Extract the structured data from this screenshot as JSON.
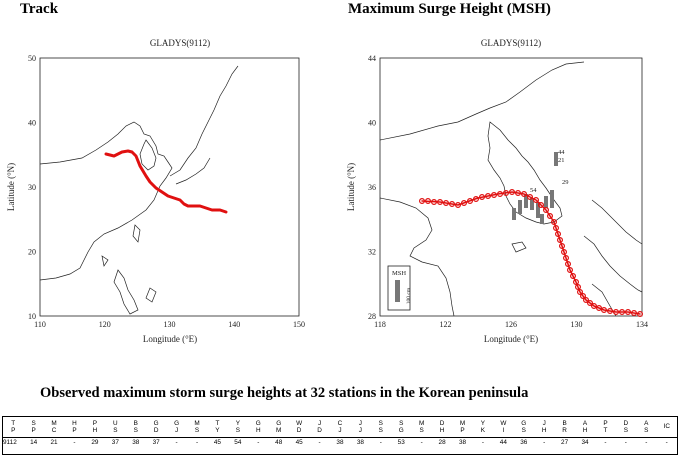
{
  "headings": {
    "track": "Track",
    "msh": "Maximum Surge Height (MSH)",
    "table_title": "Observed maximum storm surge heights at 32 stations in the Korean peninsula"
  },
  "left_map": {
    "title": "GLADYS(9112)",
    "xlabel": "Longitude (°E)",
    "ylabel": "Latitude (°N)",
    "x_ticks": [
      "110",
      "120",
      "130",
      "140",
      "150"
    ],
    "y_ticks": [
      "50",
      "40",
      "30",
      "20",
      "10"
    ],
    "track_color": "#e01010"
  },
  "right_map": {
    "title": "GLADYS(9112)",
    "xlabel": "Longitude (°E)",
    "ylabel": "Latitude (°N)",
    "x_ticks": [
      "118",
      "122",
      "126",
      "130",
      "134"
    ],
    "y_ticks": [
      "44",
      "40",
      "36",
      "32",
      "28"
    ],
    "station_labels": [
      "44",
      "21",
      "29",
      "54"
    ],
    "legend_title": "MSH",
    "legend_scale": "100 cm",
    "track_color": "#e01010"
  },
  "table": {
    "headers": [
      [
        "T",
        "P"
      ],
      [
        "S",
        "P"
      ],
      [
        "M",
        "C"
      ],
      [
        "H",
        "P"
      ],
      [
        "P",
        "H"
      ],
      [
        "U",
        "S"
      ],
      [
        "B",
        "S"
      ],
      [
        "G",
        "D"
      ],
      [
        "G",
        "J"
      ],
      [
        "M",
        "S"
      ],
      [
        "T",
        "Y"
      ],
      [
        "Y",
        "S"
      ],
      [
        "G",
        "H"
      ],
      [
        "G",
        "M"
      ],
      [
        "W",
        "D"
      ],
      [
        "J",
        "D"
      ],
      [
        "C",
        "J"
      ],
      [
        "J",
        "J"
      ],
      [
        "S",
        "S"
      ],
      [
        "S",
        "G"
      ],
      [
        "M",
        "S"
      ],
      [
        "D",
        "H"
      ],
      [
        "M",
        "P"
      ],
      [
        "Y",
        "K"
      ],
      [
        "W",
        "I"
      ],
      [
        "G",
        "S"
      ],
      [
        "J",
        "H"
      ],
      [
        "B",
        "R"
      ],
      [
        "A",
        "H"
      ],
      [
        "P",
        "T"
      ],
      [
        "D",
        "S"
      ],
      [
        "A",
        "S"
      ],
      [
        "IC",
        ""
      ]
    ],
    "values": [
      "9112",
      "14",
      "21",
      "-",
      "29",
      "37",
      "38",
      "37",
      "-",
      "-",
      "45",
      "54",
      "-",
      "48",
      "45",
      "-",
      "38",
      "38",
      "-",
      "53",
      "-",
      "28",
      "38",
      "-",
      "44",
      "36",
      "-",
      "27",
      "34",
      "-",
      "-",
      "-",
      "-"
    ]
  }
}
